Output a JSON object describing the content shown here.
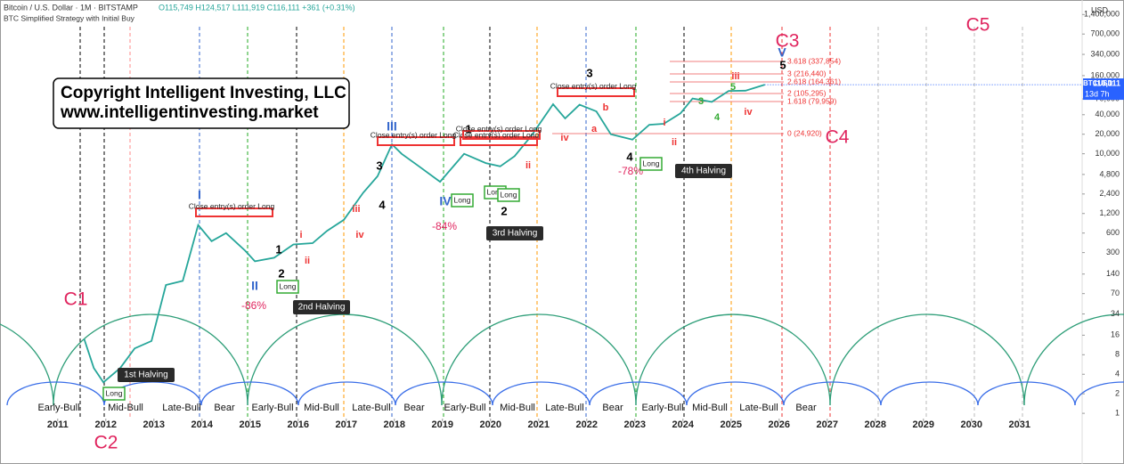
{
  "chart_data": {
    "type": "line",
    "title": "Bitcoin / U.S. Dollar · 1M · BITSTAMP",
    "ohlc_label": "O115,749 H124,517 L111,919 C116,111 +361 (+0.31%)",
    "subtitle": "BTC Simplified Strategy with Initial Buy",
    "y_label": "USD",
    "log_scale": true,
    "grid": false,
    "x": [
      2011.55,
      2011.75,
      2011.95,
      2012.3,
      2012.6,
      2012.95,
      2013.25,
      2013.6,
      2013.92,
      2014.2,
      2014.5,
      2014.9,
      2015.1,
      2015.5,
      2015.9,
      2016.3,
      2016.6,
      2016.95,
      2017.35,
      2017.65,
      2017.95,
      2018.15,
      2018.5,
      2018.95,
      2019.45,
      2019.9,
      2020.2,
      2020.5,
      2020.85,
      2021.3,
      2021.55,
      2021.85,
      2022.2,
      2022.5,
      2022.95,
      2023.3,
      2023.6,
      2023.95,
      2024.2,
      2024.6,
      2024.95,
      2025.3,
      2025.7
    ],
    "series": [
      {
        "name": "BTCUSD",
        "color": "#26a69a",
        "values": [
          14,
          5,
          3,
          5,
          10,
          13,
          95,
          110,
          800,
          450,
          600,
          320,
          220,
          250,
          400,
          420,
          650,
          960,
          2500,
          4500,
          14000,
          10000,
          6500,
          3700,
          10000,
          7200,
          6400,
          9200,
          19000,
          58000,
          35000,
          57000,
          45000,
          20000,
          16500,
          28000,
          29000,
          42000,
          71000,
          63000,
          93000,
          94000,
          116111
        ]
      }
    ],
    "price_tag": "116,111",
    "countdown": "13d 7h",
    "xlim": [
      2009.8,
      2032.3
    ],
    "xticks": [
      2011,
      2012,
      2013,
      2014,
      2015,
      2016,
      2017,
      2018,
      2019,
      2020,
      2021,
      2022,
      2023,
      2024,
      2025,
      2026,
      2027,
      2028,
      2029,
      2030,
      2031
    ],
    "ylim": [
      0.83,
      2000000
    ],
    "yticks": [
      1,
      2,
      4,
      8,
      16,
      34,
      70,
      140,
      300,
      600,
      {
        "value": 1200,
        "label": "1,200"
      },
      {
        "value": 2400,
        "label": "2,400"
      },
      {
        "value": 4800,
        "label": "4,800"
      },
      {
        "value": 10000,
        "label": "10,000"
      },
      {
        "value": 20000,
        "label": "20,000"
      },
      {
        "value": 40000,
        "label": "40,000"
      },
      {
        "value": 70000,
        "label": "70,000"
      },
      {
        "value": 160000,
        "label": "160,000"
      },
      {
        "value": 340000,
        "label": "340,000"
      },
      {
        "value": 700000,
        "label": "700,000"
      },
      {
        "value": 1400000,
        "label": "1,400,000"
      }
    ],
    "copyright": [
      "Copyright Intelligent Investing, LLC",
      "www.intelligentinvesting.market"
    ],
    "cycle_labels": [
      "C1",
      "C2",
      "C3",
      "C4",
      "C5"
    ],
    "phases": [
      "Early-Bull",
      "Mid-Bull",
      "Late-Bull",
      "Bear",
      "Early-Bull",
      "Mid-Bull",
      "Late-Bull",
      "Bear",
      "Early-Bull",
      "Mid-Bull",
      "Late-Bull",
      "Bear",
      "Early-Bull",
      "Mid-Bull",
      "Late-Bull",
      "Bear"
    ],
    "halvings": [
      "1st Halving",
      "2nd Halving",
      "3rd Halving",
      "4th Halving"
    ],
    "drawdowns": [
      "-86%",
      "-84%",
      "-78%"
    ],
    "waves": [
      "I",
      "II",
      "III",
      "IV",
      "V",
      "1",
      "2",
      "3",
      "4",
      "1",
      "2",
      "3",
      "4",
      "5",
      "i",
      "ii",
      "iii",
      "iv",
      "ii",
      "iv",
      "a",
      "b",
      "i",
      "ii",
      "iii",
      "iv",
      "3",
      "5",
      "4"
    ],
    "fib_levels": [
      "3.618 (337,854)",
      "3 (216,440)",
      "2.618 (164,361)",
      "2 (105,295)",
      "1.618 (79,959)",
      "0 (24,920)"
    ],
    "orders": [
      "Close entry(s) order Long",
      "Close entry(s) order Long",
      "Close entry(s) order Long",
      "Close entry(s) order Long",
      "Close entry(s) order Long"
    ],
    "entries": [
      "Long",
      "Long",
      "Long",
      "Long",
      "Long",
      "Long"
    ]
  }
}
